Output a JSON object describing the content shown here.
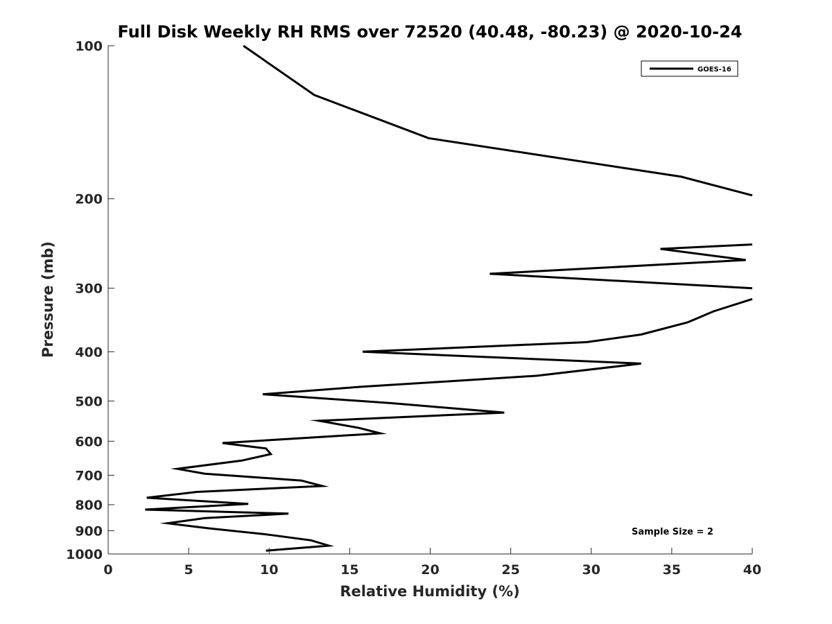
{
  "chart_data": {
    "type": "line",
    "title": "Full Disk Weekly RH RMS over 72520 (40.48, -80.23) @ 2020-10-24",
    "xlabel": "Relative Humidity (%)",
    "ylabel": "Pressure (mb)",
    "xlim": [
      0,
      40
    ],
    "ylim": [
      100,
      1000
    ],
    "yscale": "log",
    "y_reversed": true,
    "grid": false,
    "x_ticks": [
      0,
      5,
      10,
      15,
      20,
      25,
      30,
      35,
      40
    ],
    "y_ticks": [
      100,
      200,
      300,
      400,
      500,
      600,
      700,
      800,
      900,
      1000
    ],
    "legend": {
      "position": "top-right",
      "entries": [
        "GOES-16"
      ]
    },
    "annotation": "Sample Size = 2",
    "series": [
      {
        "name": "GOES-16",
        "color": "#000000",
        "segments": [
          {
            "x": [
              8.4,
              12.8,
              19.9,
              35.6,
              40
            ],
            "y": [
              100,
              125,
              152,
              181,
              197
            ]
          },
          {
            "x": [
              40,
              34.3,
              39.6,
              23.7,
              40
            ],
            "y": [
              246,
              251,
              264,
              281,
              300
            ]
          },
          {
            "x": [
              40,
              37.6,
              36,
              33.1,
              29.7,
              15.8,
              33.1,
              26.6,
              15.6,
              9.6,
              17.6,
              24.6,
              13.1,
              15.6,
              16.9,
              7.1,
              9.8,
              10.1,
              8.3,
              4.3,
              6,
              12,
              13.3,
              5.5,
              2.4,
              8.7,
              2.3,
              11.2,
              6,
              3.7,
              6.2,
              9.8,
              12.6,
              13.7,
              9.8
            ],
            "y": [
              315,
              333,
              350,
              370,
              383,
              400,
              422,
              446,
              469,
              485,
              505,
              527,
              547,
              565,
              579,
              605,
              620,
              636,
              655,
              680,
              695,
              717,
              735,
              755,
              775,
              797,
              818,
              833,
              850,
              870,
              890,
              915,
              940,
              963,
              985
            ]
          }
        ]
      }
    ]
  }
}
